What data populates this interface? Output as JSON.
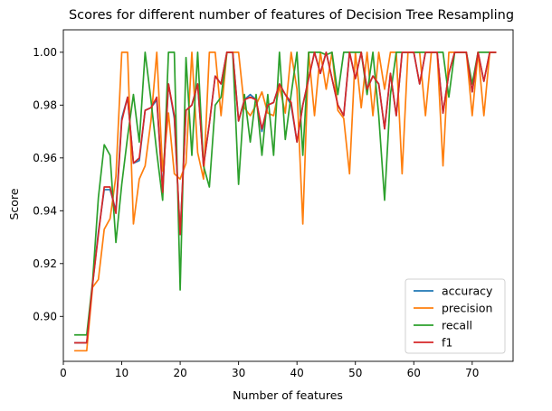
{
  "chart_data": {
    "type": "line",
    "title": "Scores for different number of features of Decision Tree Resampling",
    "xlabel": "Number of features",
    "ylabel": "Score",
    "xlim": [
      0,
      77
    ],
    "ylim": [
      0.883,
      1.0085
    ],
    "xticks": [
      0,
      10,
      20,
      30,
      40,
      50,
      60,
      70
    ],
    "yticks": [
      0.9,
      0.92,
      0.94,
      0.96,
      0.98,
      1.0
    ],
    "ytick_labels": [
      "0.90",
      "0.92",
      "0.94",
      "0.96",
      "0.98",
      "1.00"
    ],
    "grid": false,
    "legend": "lower-right",
    "x": [
      2,
      3,
      4,
      5,
      6,
      7,
      8,
      9,
      10,
      11,
      12,
      13,
      14,
      15,
      16,
      17,
      18,
      19,
      20,
      21,
      22,
      23,
      24,
      25,
      26,
      27,
      28,
      29,
      30,
      31,
      32,
      33,
      34,
      35,
      36,
      37,
      38,
      39,
      40,
      41,
      42,
      43,
      44,
      45,
      46,
      47,
      48,
      49,
      50,
      51,
      52,
      53,
      54,
      55,
      56,
      57,
      58,
      59,
      60,
      61,
      62,
      63,
      64,
      65,
      66,
      67,
      68,
      69,
      70,
      71,
      72,
      73,
      74
    ],
    "series": [
      {
        "name": "accuracy",
        "color": "#1f77b4",
        "values": [
          0.89,
          0.89,
          0.89,
          0.912,
          0.932,
          0.948,
          0.948,
          0.94,
          0.975,
          0.983,
          0.958,
          0.959,
          0.978,
          0.979,
          0.982,
          0.948,
          0.988,
          0.975,
          0.931,
          0.978,
          0.98,
          0.988,
          0.957,
          0.973,
          0.991,
          0.988,
          1.0,
          1.0,
          0.974,
          0.982,
          0.984,
          0.982,
          0.97,
          0.98,
          0.981,
          0.988,
          0.984,
          0.98,
          0.966,
          0.98,
          0.99,
          1.0,
          0.992,
          1.0,
          0.99,
          0.98,
          0.976,
          1.0,
          0.99,
          1.0,
          0.986,
          0.991,
          0.988,
          0.971,
          0.992,
          0.976,
          1.0,
          1.0,
          1.0,
          0.988,
          1.0,
          1.0,
          1.0,
          0.977,
          0.992,
          1.0,
          1.0,
          1.0,
          0.985,
          1.0,
          0.989,
          1.0,
          1.0
        ]
      },
      {
        "name": "precision",
        "color": "#ff7f0e",
        "values": [
          0.887,
          0.887,
          0.887,
          0.911,
          0.914,
          0.933,
          0.937,
          0.953,
          1.0,
          1.0,
          0.935,
          0.952,
          0.957,
          0.974,
          1.0,
          0.955,
          0.977,
          0.954,
          0.952,
          0.958,
          1.0,
          0.962,
          0.952,
          1.0,
          1.0,
          0.976,
          1.0,
          1.0,
          1.0,
          0.979,
          0.976,
          0.98,
          0.985,
          0.977,
          0.976,
          0.987,
          0.977,
          1.0,
          0.986,
          0.935,
          1.0,
          0.976,
          1.0,
          0.986,
          1.0,
          0.978,
          0.975,
          0.954,
          1.0,
          0.979,
          1.0,
          0.976,
          1.0,
          0.986,
          1.0,
          1.0,
          0.954,
          1.0,
          1.0,
          1.0,
          0.976,
          1.0,
          1.0,
          0.957,
          1.0,
          1.0,
          1.0,
          1.0,
          0.976,
          1.0,
          0.976,
          1.0,
          1.0
        ]
      },
      {
        "name": "recall",
        "color": "#2ca02c",
        "values": [
          0.893,
          0.893,
          0.893,
          0.913,
          0.945,
          0.965,
          0.961,
          0.928,
          0.95,
          0.968,
          0.984,
          0.966,
          1.0,
          0.982,
          0.962,
          0.944,
          1.0,
          1.0,
          0.91,
          0.998,
          0.961,
          1.0,
          0.957,
          0.949,
          0.98,
          0.983,
          1.0,
          1.0,
          0.95,
          0.984,
          0.966,
          0.984,
          0.961,
          0.984,
          0.961,
          1.0,
          0.967,
          0.984,
          1.0,
          0.961,
          1.0,
          1.0,
          1.0,
          0.999,
          1.0,
          0.984,
          1.0,
          1.0,
          1.0,
          1.0,
          0.984,
          1.0,
          0.976,
          0.944,
          0.984,
          1.0,
          1.0,
          1.0,
          1.0,
          1.0,
          1.0,
          1.0,
          1.0,
          1.0,
          0.983,
          1.0,
          1.0,
          1.0,
          0.988,
          1.0,
          1.0,
          1.0,
          1.0
        ]
      },
      {
        "name": "f1",
        "color": "#d62728",
        "values": [
          0.89,
          0.89,
          0.89,
          0.912,
          0.931,
          0.949,
          0.949,
          0.939,
          0.974,
          0.983,
          0.958,
          0.96,
          0.978,
          0.979,
          0.983,
          0.947,
          0.988,
          0.976,
          0.931,
          0.978,
          0.98,
          0.988,
          0.957,
          0.973,
          0.991,
          0.988,
          1.0,
          1.0,
          0.974,
          0.982,
          0.983,
          0.982,
          0.971,
          0.98,
          0.981,
          0.988,
          0.984,
          0.981,
          0.966,
          0.98,
          0.99,
          1.0,
          0.992,
          1.0,
          0.99,
          0.98,
          0.976,
          1.0,
          0.99,
          1.0,
          0.986,
          0.991,
          0.988,
          0.971,
          0.992,
          0.976,
          1.0,
          1.0,
          1.0,
          0.988,
          1.0,
          1.0,
          1.0,
          0.977,
          0.992,
          1.0,
          1.0,
          1.0,
          0.985,
          1.0,
          0.989,
          1.0,
          1.0
        ]
      }
    ]
  }
}
